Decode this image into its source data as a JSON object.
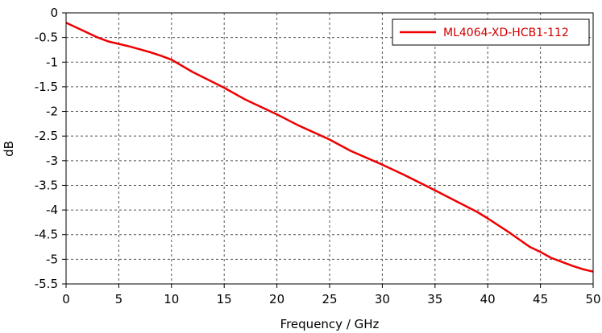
{
  "chart_data": {
    "type": "line",
    "xlabel": "Frequency / GHz",
    "ylabel": "dB",
    "xlim": [
      0,
      50
    ],
    "ylim": [
      -5.5,
      0
    ],
    "xticks": [
      0,
      5,
      10,
      15,
      20,
      25,
      30,
      35,
      40,
      45,
      50
    ],
    "yticks": [
      0,
      -0.5,
      -1,
      -1.5,
      -2,
      -2.5,
      -3,
      -3.5,
      -4,
      -4.5,
      -5,
      -5.5
    ],
    "grid": true,
    "legend_position": "top-right",
    "series": [
      {
        "name": "ML4064-XD-HCB1-112",
        "color": "#ee0000",
        "x": [
          0,
          1,
          2,
          3,
          4,
          5,
          6,
          7,
          8,
          9,
          10,
          12,
          15,
          17,
          20,
          22,
          25,
          27,
          30,
          32,
          35,
          37,
          39,
          40,
          42,
          44,
          45,
          46,
          47,
          48,
          49,
          50
        ],
        "y": [
          -0.2,
          -0.3,
          -0.4,
          -0.5,
          -0.58,
          -0.63,
          -0.68,
          -0.74,
          -0.8,
          -0.87,
          -0.95,
          -1.2,
          -1.52,
          -1.76,
          -2.06,
          -2.28,
          -2.57,
          -2.8,
          -3.08,
          -3.28,
          -3.6,
          -3.82,
          -4.04,
          -4.17,
          -4.45,
          -4.75,
          -4.85,
          -4.97,
          -5.05,
          -5.13,
          -5.2,
          -5.25
        ]
      }
    ]
  }
}
